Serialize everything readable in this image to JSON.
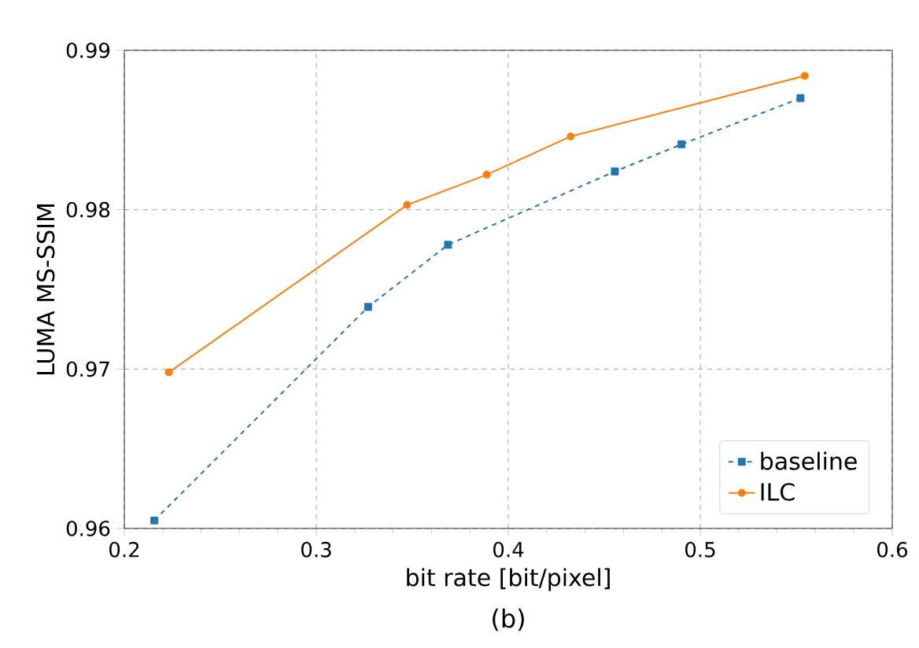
{
  "chart_data": {
    "type": "line",
    "xlabel": "bit rate [bit/pixel]",
    "ylabel": "LUMA MS-SSIM",
    "annotations": [
      "(b)"
    ],
    "xlim": [
      0.2,
      0.6
    ],
    "xticks": [
      0.2,
      0.3,
      0.4,
      0.5,
      0.6
    ],
    "ylim": [
      0.96,
      0.99
    ],
    "yticks": [
      0.96,
      0.97,
      0.98,
      0.99
    ],
    "grid": true,
    "legend": "bottom right",
    "series": [
      {
        "name": "baseline",
        "color": "#1f77b4",
        "marker": "square",
        "line_style": "dashed",
        "x": [
          0.2156,
          0.327,
          0.3686,
          0.4555,
          0.4902,
          0.5522
        ],
        "values": [
          0.9605,
          0.9739,
          0.9778,
          0.9824,
          0.9841,
          0.987
        ]
      },
      {
        "name": "ILC",
        "color": "#ff7f0e",
        "marker": "circle",
        "line_style": "solid",
        "x": [
          0.2232,
          0.3473,
          0.3888,
          0.4325,
          0.5544
        ],
        "values": [
          0.9698,
          0.9803,
          0.9822,
          0.9846,
          0.9884
        ]
      }
    ]
  }
}
